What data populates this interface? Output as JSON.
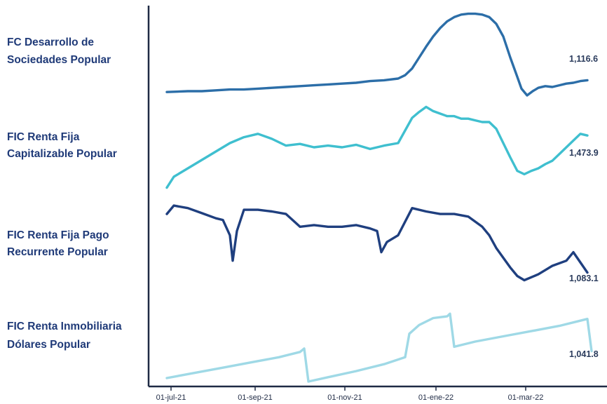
{
  "chart_data": {
    "type": "line",
    "x_ticks": [
      "01-jul-21",
      "01-sep-21",
      "01-nov-21",
      "01-ene-22",
      "01-mar-22"
    ],
    "grid": false,
    "legend": "none",
    "series": [
      {
        "name_lines": [
          "FC Desarrollo de",
          "Sociedades Popular"
        ],
        "end_label": "1,116.6",
        "color": "#2c6ea8",
        "points": [
          [
            5,
            0.04
          ],
          [
            20,
            0.05
          ],
          [
            30,
            0.05
          ],
          [
            40,
            0.06
          ],
          [
            50,
            0.07
          ],
          [
            60,
            0.07
          ],
          [
            70,
            0.08
          ],
          [
            80,
            0.09
          ],
          [
            90,
            0.1
          ],
          [
            100,
            0.11
          ],
          [
            110,
            0.12
          ],
          [
            120,
            0.13
          ],
          [
            130,
            0.14
          ],
          [
            140,
            0.15
          ],
          [
            150,
            0.17
          ],
          [
            160,
            0.18
          ],
          [
            170,
            0.2
          ],
          [
            175,
            0.24
          ],
          [
            180,
            0.32
          ],
          [
            185,
            0.45
          ],
          [
            190,
            0.58
          ],
          [
            195,
            0.7
          ],
          [
            200,
            0.8
          ],
          [
            205,
            0.88
          ],
          [
            210,
            0.93
          ],
          [
            215,
            0.96
          ],
          [
            220,
            0.97
          ],
          [
            225,
            0.97
          ],
          [
            230,
            0.96
          ],
          [
            235,
            0.93
          ],
          [
            240,
            0.85
          ],
          [
            245,
            0.7
          ],
          [
            250,
            0.45
          ],
          [
            255,
            0.22
          ],
          [
            258,
            0.08
          ],
          [
            262,
            0.0
          ],
          [
            266,
            0.05
          ],
          [
            270,
            0.09
          ],
          [
            275,
            0.11
          ],
          [
            280,
            0.1
          ],
          [
            285,
            0.12
          ],
          [
            290,
            0.14
          ],
          [
            295,
            0.15
          ],
          [
            300,
            0.17
          ],
          [
            305,
            0.18
          ]
        ]
      },
      {
        "name_lines": [
          "FIC Renta Fija",
          "Capitalizable Popular"
        ],
        "end_label": "1,473.9",
        "color": "#3fbfcf",
        "points": [
          [
            5,
            0.02
          ],
          [
            10,
            0.15
          ],
          [
            20,
            0.25
          ],
          [
            30,
            0.35
          ],
          [
            40,
            0.45
          ],
          [
            50,
            0.55
          ],
          [
            60,
            0.62
          ],
          [
            70,
            0.66
          ],
          [
            80,
            0.6
          ],
          [
            90,
            0.52
          ],
          [
            100,
            0.54
          ],
          [
            110,
            0.5
          ],
          [
            120,
            0.52
          ],
          [
            130,
            0.5
          ],
          [
            140,
            0.53
          ],
          [
            150,
            0.48
          ],
          [
            160,
            0.52
          ],
          [
            170,
            0.55
          ],
          [
            175,
            0.7
          ],
          [
            180,
            0.85
          ],
          [
            185,
            0.92
          ],
          [
            190,
            0.98
          ],
          [
            195,
            0.93
          ],
          [
            200,
            0.9
          ],
          [
            205,
            0.87
          ],
          [
            210,
            0.87
          ],
          [
            215,
            0.84
          ],
          [
            220,
            0.84
          ],
          [
            225,
            0.82
          ],
          [
            230,
            0.8
          ],
          [
            235,
            0.8
          ],
          [
            240,
            0.72
          ],
          [
            245,
            0.55
          ],
          [
            250,
            0.38
          ],
          [
            255,
            0.22
          ],
          [
            260,
            0.18
          ],
          [
            265,
            0.22
          ],
          [
            270,
            0.25
          ],
          [
            275,
            0.3
          ],
          [
            280,
            0.34
          ],
          [
            285,
            0.42
          ],
          [
            290,
            0.5
          ],
          [
            295,
            0.58
          ],
          [
            300,
            0.66
          ],
          [
            305,
            0.64
          ]
        ]
      },
      {
        "name_lines": [
          "FIC Renta Fija Pago",
          "Recurrente Popular"
        ],
        "end_label": "1,083.1",
        "color": "#1f3f7f",
        "points": [
          [
            5,
            0.85
          ],
          [
            10,
            0.95
          ],
          [
            20,
            0.92
          ],
          [
            30,
            0.86
          ],
          [
            40,
            0.8
          ],
          [
            45,
            0.78
          ],
          [
            50,
            0.6
          ],
          [
            52,
            0.3
          ],
          [
            55,
            0.65
          ],
          [
            60,
            0.9
          ],
          [
            70,
            0.9
          ],
          [
            80,
            0.88
          ],
          [
            90,
            0.85
          ],
          [
            100,
            0.7
          ],
          [
            110,
            0.72
          ],
          [
            120,
            0.7
          ],
          [
            130,
            0.7
          ],
          [
            140,
            0.72
          ],
          [
            150,
            0.68
          ],
          [
            155,
            0.65
          ],
          [
            158,
            0.4
          ],
          [
            162,
            0.52
          ],
          [
            170,
            0.6
          ],
          [
            180,
            0.92
          ],
          [
            190,
            0.88
          ],
          [
            200,
            0.85
          ],
          [
            210,
            0.85
          ],
          [
            220,
            0.82
          ],
          [
            230,
            0.7
          ],
          [
            235,
            0.6
          ],
          [
            240,
            0.45
          ],
          [
            250,
            0.22
          ],
          [
            255,
            0.12
          ],
          [
            260,
            0.07
          ],
          [
            270,
            0.14
          ],
          [
            280,
            0.24
          ],
          [
            290,
            0.3
          ],
          [
            295,
            0.4
          ],
          [
            300,
            0.28
          ],
          [
            305,
            0.16
          ]
        ]
      },
      {
        "name_lines": [
          "FIC Renta Inmobiliaria",
          "Dólares Popular"
        ],
        "end_label": "1,041.8",
        "color": "#9fd9e6",
        "points": [
          [
            5,
            0.04
          ],
          [
            25,
            0.1
          ],
          [
            45,
            0.16
          ],
          [
            65,
            0.22
          ],
          [
            85,
            0.28
          ],
          [
            100,
            0.34
          ],
          [
            103,
            0.38
          ],
          [
            106,
            0.0
          ],
          [
            120,
            0.05
          ],
          [
            140,
            0.12
          ],
          [
            160,
            0.2
          ],
          [
            175,
            0.28
          ],
          [
            178,
            0.55
          ],
          [
            185,
            0.65
          ],
          [
            195,
            0.73
          ],
          [
            205,
            0.75
          ],
          [
            207,
            0.78
          ],
          [
            210,
            0.4
          ],
          [
            225,
            0.46
          ],
          [
            245,
            0.52
          ],
          [
            265,
            0.58
          ],
          [
            285,
            0.64
          ],
          [
            300,
            0.7
          ],
          [
            305,
            0.72
          ],
          [
            308,
            0.35
          ]
        ]
      }
    ]
  }
}
